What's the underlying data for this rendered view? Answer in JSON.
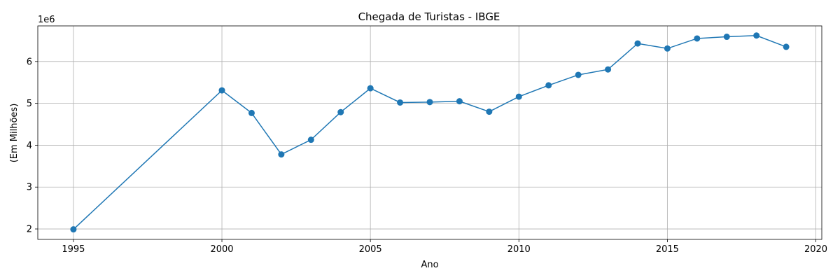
{
  "chart_data": {
    "type": "line",
    "title": "Chegada de Turistas - IBGE",
    "xlabel": "Ano",
    "ylabel": "(Em Milhões)",
    "offset_text": "1e6",
    "xlim": [
      1993.8,
      2020.2
    ],
    "ylim": [
      1750000,
      6850000
    ],
    "xticks": [
      1995,
      2000,
      2005,
      2010,
      2015,
      2020
    ],
    "yticks": [
      2,
      3,
      4,
      5,
      6
    ],
    "ytick_scale": 1000000,
    "grid": true,
    "color": "#1f77b4",
    "marker": "circle",
    "x": [
      1995,
      2000,
      2001,
      2002,
      2003,
      2004,
      2005,
      2006,
      2007,
      2008,
      2009,
      2010,
      2011,
      2012,
      2013,
      2014,
      2015,
      2016,
      2017,
      2018,
      2019
    ],
    "values": [
      1990000,
      5310000,
      4770000,
      3780000,
      4130000,
      4790000,
      5360000,
      5020000,
      5030000,
      5050000,
      4800000,
      5160000,
      5430000,
      5680000,
      5810000,
      6430000,
      6310000,
      6550000,
      6590000,
      6620000,
      6350000
    ]
  }
}
